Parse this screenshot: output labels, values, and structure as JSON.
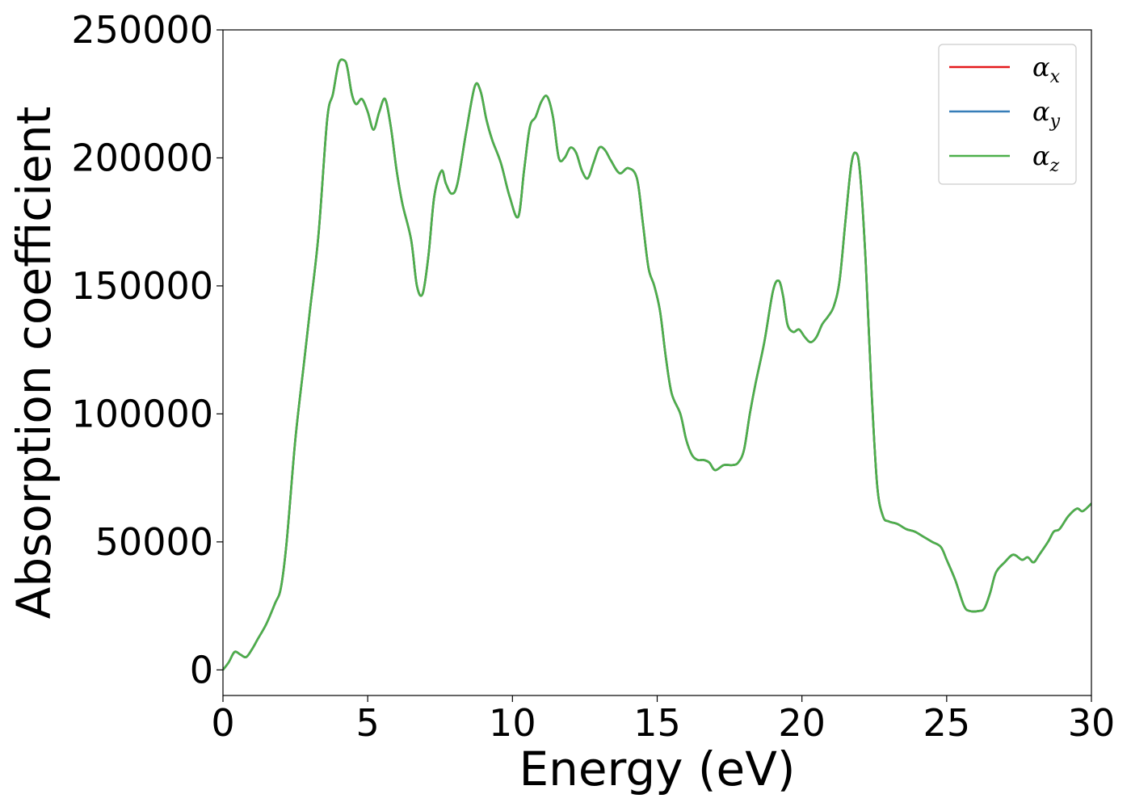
{
  "chart_data": {
    "type": "line",
    "title": "",
    "xlabel": "Energy (eV)",
    "ylabel": "Absorption coefficient",
    "xlim": [
      0,
      30
    ],
    "ylim": [
      -10000,
      250000
    ],
    "xticks": [
      0,
      5,
      10,
      15,
      20,
      25,
      30
    ],
    "xtick_labels": [
      "0",
      "5",
      "10",
      "15",
      "20",
      "25",
      "30"
    ],
    "yticks": [
      0,
      50000,
      100000,
      150000,
      200000,
      250000
    ],
    "ytick_labels": [
      "0",
      "50000",
      "100000",
      "150000",
      "200000",
      "250000"
    ],
    "grid": false,
    "legend_position": "top-right",
    "legend": {
      "entries": [
        {
          "symbol": "α",
          "subscript": "x",
          "color": "#e41a1c"
        },
        {
          "symbol": "α",
          "subscript": "y",
          "color": "#377eb8"
        },
        {
          "symbol": "α",
          "subscript": "z",
          "color": "#4daf4a"
        }
      ]
    },
    "x": [
      0.0,
      0.2,
      0.4,
      0.6,
      0.8,
      1.0,
      1.2,
      1.5,
      1.8,
      2.0,
      2.2,
      2.5,
      2.8,
      3.0,
      3.3,
      3.6,
      3.8,
      4.0,
      4.2,
      4.3,
      4.45,
      4.6,
      4.8,
      5.0,
      5.2,
      5.4,
      5.6,
      5.8,
      6.0,
      6.2,
      6.5,
      6.7,
      6.9,
      7.1,
      7.3,
      7.55,
      7.7,
      7.9,
      8.1,
      8.4,
      8.7,
      8.9,
      9.1,
      9.3,
      9.6,
      9.9,
      10.2,
      10.4,
      10.6,
      10.8,
      11.0,
      11.2,
      11.4,
      11.6,
      11.8,
      12.0,
      12.2,
      12.4,
      12.6,
      12.8,
      13.0,
      13.2,
      13.4,
      13.7,
      14.0,
      14.3,
      14.5,
      14.7,
      14.9,
      15.1,
      15.3,
      15.5,
      15.8,
      16.0,
      16.2,
      16.4,
      16.6,
      16.8,
      17.0,
      17.3,
      17.6,
      17.8,
      18.0,
      18.2,
      18.4,
      18.7,
      19.0,
      19.2,
      19.35,
      19.5,
      19.7,
      19.9,
      20.1,
      20.3,
      20.5,
      20.7,
      20.9,
      21.1,
      21.3,
      21.5,
      21.7,
      21.85,
      22.0,
      22.2,
      22.4,
      22.6,
      22.8,
      23.0,
      23.3,
      23.6,
      23.9,
      24.2,
      24.5,
      24.8,
      25.0,
      25.3,
      25.6,
      25.8,
      26.1,
      26.3,
      26.5,
      26.7,
      27.0,
      27.3,
      27.6,
      27.8,
      28.0,
      28.2,
      28.5,
      28.7,
      28.9,
      29.2,
      29.5,
      29.7,
      30.0
    ],
    "series": [
      {
        "name": "α_x",
        "color": "#e41a1c",
        "values": [
          0,
          3000,
          7000,
          6000,
          5000,
          8000,
          12000,
          18000,
          26000,
          32000,
          50000,
          90000,
          120000,
          140000,
          170000,
          215000,
          225000,
          237000,
          238000,
          235000,
          225000,
          221000,
          223000,
          218000,
          211000,
          218000,
          223000,
          212000,
          195000,
          182000,
          168000,
          150000,
          147000,
          162000,
          185000,
          195000,
          190000,
          186000,
          190000,
          210000,
          228000,
          226000,
          215000,
          207000,
          198000,
          185000,
          177000,
          195000,
          212000,
          216000,
          222000,
          224000,
          216000,
          200000,
          200000,
          204000,
          202000,
          195000,
          192000,
          198000,
          204000,
          203000,
          199000,
          194000,
          196000,
          192000,
          175000,
          157000,
          150000,
          140000,
          122000,
          108000,
          100000,
          90000,
          84000,
          82000,
          82000,
          81000,
          78000,
          80000,
          80000,
          81000,
          86000,
          100000,
          112000,
          128000,
          148000,
          152000,
          146000,
          135000,
          132000,
          133000,
          130000,
          128000,
          130000,
          135000,
          138000,
          142000,
          152000,
          175000,
          197000,
          202000,
          195000,
          160000,
          110000,
          72000,
          60000,
          58000,
          57000,
          55000,
          54000,
          52000,
          50000,
          48000,
          43000,
          35000,
          25000,
          23000,
          23000,
          24000,
          30000,
          38000,
          42000,
          45000,
          43000,
          44000,
          42000,
          45000,
          50000,
          54000,
          55000,
          60000,
          63000,
          62000,
          65000
        ]
      },
      {
        "name": "α_y",
        "color": "#377eb8",
        "values": [
          0,
          3000,
          7000,
          6000,
          5000,
          8000,
          12000,
          18000,
          26000,
          32000,
          50000,
          90000,
          120000,
          140000,
          170000,
          215000,
          225000,
          237000,
          238000,
          235000,
          225000,
          221000,
          223000,
          218000,
          211000,
          218000,
          223000,
          212000,
          195000,
          182000,
          168000,
          150000,
          147000,
          162000,
          185000,
          195000,
          190000,
          186000,
          190000,
          210000,
          228000,
          226000,
          215000,
          207000,
          198000,
          185000,
          177000,
          195000,
          212000,
          216000,
          222000,
          224000,
          216000,
          200000,
          200000,
          204000,
          202000,
          195000,
          192000,
          198000,
          204000,
          203000,
          199000,
          194000,
          196000,
          192000,
          175000,
          157000,
          150000,
          140000,
          122000,
          108000,
          100000,
          90000,
          84000,
          82000,
          82000,
          81000,
          78000,
          80000,
          80000,
          81000,
          86000,
          100000,
          112000,
          128000,
          148000,
          152000,
          146000,
          135000,
          132000,
          133000,
          130000,
          128000,
          130000,
          135000,
          138000,
          142000,
          152000,
          175000,
          197000,
          202000,
          195000,
          160000,
          110000,
          72000,
          60000,
          58000,
          57000,
          55000,
          54000,
          52000,
          50000,
          48000,
          43000,
          35000,
          25000,
          23000,
          23000,
          24000,
          30000,
          38000,
          42000,
          45000,
          43000,
          44000,
          42000,
          45000,
          50000,
          54000,
          55000,
          60000,
          63000,
          62000,
          65000
        ]
      },
      {
        "name": "α_z",
        "color": "#4daf4a",
        "values": [
          0,
          3000,
          7000,
          6000,
          5000,
          8000,
          12000,
          18000,
          26000,
          32000,
          50000,
          90000,
          120000,
          140000,
          170000,
          215000,
          225000,
          237000,
          238000,
          235000,
          225000,
          221000,
          223000,
          218000,
          211000,
          218000,
          223000,
          212000,
          195000,
          182000,
          168000,
          150000,
          147000,
          162000,
          185000,
          195000,
          190000,
          186000,
          190000,
          210000,
          228000,
          226000,
          215000,
          207000,
          198000,
          185000,
          177000,
          195000,
          212000,
          216000,
          222000,
          224000,
          216000,
          200000,
          200000,
          204000,
          202000,
          195000,
          192000,
          198000,
          204000,
          203000,
          199000,
          194000,
          196000,
          192000,
          175000,
          157000,
          150000,
          140000,
          122000,
          108000,
          100000,
          90000,
          84000,
          82000,
          82000,
          81000,
          78000,
          80000,
          80000,
          81000,
          86000,
          100000,
          112000,
          128000,
          148000,
          152000,
          146000,
          135000,
          132000,
          133000,
          130000,
          128000,
          130000,
          135000,
          138000,
          142000,
          152000,
          175000,
          197000,
          202000,
          195000,
          160000,
          110000,
          72000,
          60000,
          58000,
          57000,
          55000,
          54000,
          52000,
          50000,
          48000,
          43000,
          35000,
          25000,
          23000,
          23000,
          24000,
          30000,
          38000,
          42000,
          45000,
          43000,
          44000,
          42000,
          45000,
          50000,
          54000,
          55000,
          60000,
          63000,
          62000,
          65000
        ]
      }
    ]
  }
}
